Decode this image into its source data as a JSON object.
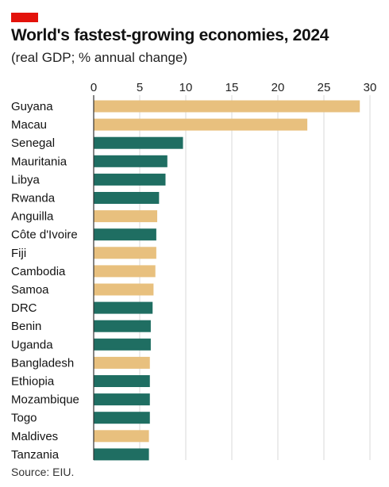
{
  "header": {
    "title": "World's fastest-growing economies, 2024",
    "subtitle": "(real GDP; % annual change)"
  },
  "footer": {
    "source": "Source: EIU."
  },
  "colors": {
    "brand_red": "#e3120b",
    "highlight_tan": "#e8c07e",
    "main_green": "#1f6e62",
    "grid": "#d8d8d8",
    "axis": "#333333"
  },
  "chart_data": {
    "type": "bar",
    "orientation": "horizontal",
    "title": "World's fastest-growing economies, 2024",
    "subtitle": "(real GDP; % annual change)",
    "xlim": [
      0,
      30
    ],
    "xticks": [
      0,
      5,
      10,
      15,
      20,
      25,
      30
    ],
    "grid": true,
    "axis_position": "top",
    "categories": [
      "Guyana",
      "Macau",
      "Senegal",
      "Mauritania",
      "Libya",
      "Rwanda",
      "Anguilla",
      "Côte d'Ivoire",
      "Fiji",
      "Cambodia",
      "Samoa",
      "DRC",
      "Benin",
      "Uganda",
      "Bangladesh",
      "Ethiopia",
      "Mozambique",
      "Togo",
      "Maldives",
      "Tanzania"
    ],
    "values": [
      28.9,
      23.2,
      9.7,
      8.0,
      7.8,
      7.1,
      6.9,
      6.8,
      6.8,
      6.7,
      6.5,
      6.4,
      6.2,
      6.2,
      6.1,
      6.1,
      6.1,
      6.1,
      6.0,
      6.0
    ],
    "color_groups": [
      "tan",
      "tan",
      "green",
      "green",
      "green",
      "green",
      "tan",
      "green",
      "tan",
      "tan",
      "tan",
      "green",
      "green",
      "green",
      "tan",
      "green",
      "green",
      "green",
      "tan",
      "green"
    ]
  }
}
